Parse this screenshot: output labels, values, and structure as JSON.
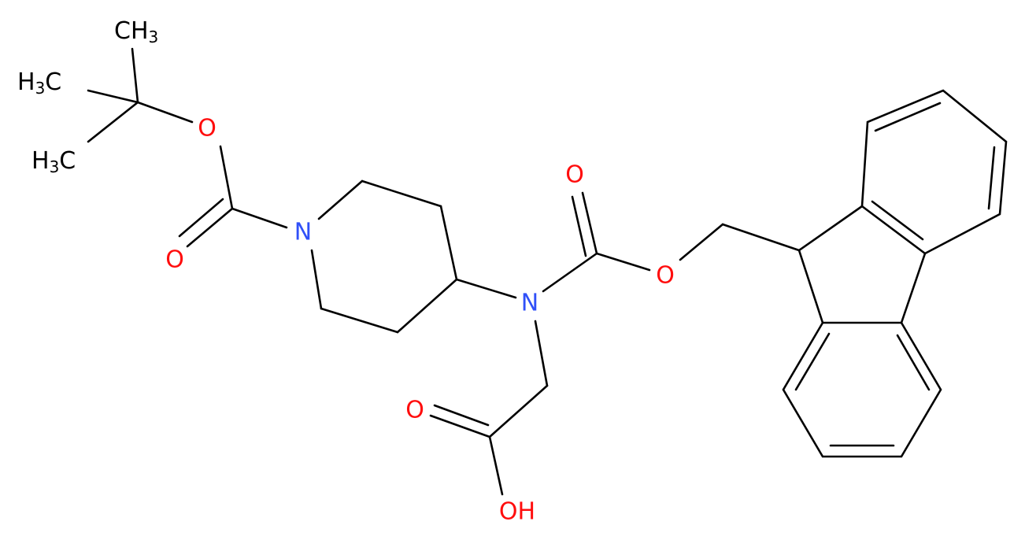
{
  "molecule": {
    "atoms": [
      {
        "text": "CH",
        "sub": "3"
      },
      {
        "text": "H",
        "sub": "3",
        "post": "C"
      },
      {
        "text": "H",
        "sub": "3",
        "post": "C"
      },
      {
        "text": "O"
      },
      {
        "text": "O"
      },
      {
        "text": "N"
      },
      {
        "text": "O"
      },
      {
        "text": "N"
      },
      {
        "text": "O"
      },
      {
        "text": "O"
      },
      {
        "text": "OH"
      }
    ]
  }
}
